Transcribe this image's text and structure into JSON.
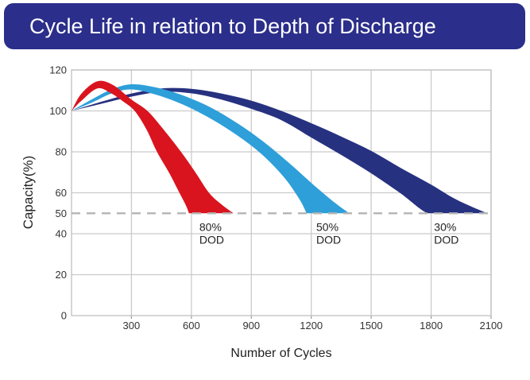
{
  "banner": {
    "title": "Cycle Life in relation to Depth of Discharge",
    "bg_color": "#2b2e8a",
    "text_color": "#ffffff"
  },
  "chart_data": {
    "type": "area",
    "subtype": "band-ribbons",
    "title": "Cycle Life in relation to Depth of Discharge",
    "xlabel": "Number of Cycles",
    "ylabel": "Capacity(%)",
    "xlim": [
      0,
      2100
    ],
    "ylim": [
      0,
      120
    ],
    "xticks": [
      300,
      600,
      900,
      1200,
      1500,
      1800,
      2100
    ],
    "yticks": [
      0,
      20,
      40,
      50,
      60,
      80,
      100,
      120
    ],
    "grid": true,
    "grid_color": "#cbcbcb",
    "axis_text_color": "#333333",
    "reference_line": {
      "y": 50,
      "style": "dashed",
      "color": "#b4b4b4"
    },
    "legend_position": "inline-labels",
    "series": [
      {
        "name": "80% DOD",
        "color": "#d9141e",
        "label": {
          "lines": [
            "80%",
            "DOD"
          ],
          "x": 640,
          "y": 46
        },
        "cycles_to_50pct": [
          590,
          800
        ],
        "upper": [
          [
            0,
            100
          ],
          [
            50,
            108.5
          ],
          [
            130,
            114.5
          ],
          [
            210,
            112.5
          ],
          [
            300,
            105.5
          ],
          [
            380,
            100
          ],
          [
            460,
            91
          ],
          [
            548,
            80
          ],
          [
            620,
            70
          ],
          [
            688,
            60
          ],
          [
            755,
            54
          ],
          [
            810,
            50
          ]
        ],
        "lower": [
          [
            0,
            100
          ],
          [
            50,
            105
          ],
          [
            130,
            111
          ],
          [
            200,
            108.5
          ],
          [
            260,
            104.5
          ],
          [
            316,
            100
          ],
          [
            375,
            91
          ],
          [
            428,
            80
          ],
          [
            490,
            69.5
          ],
          [
            540,
            60
          ],
          [
            572,
            54
          ],
          [
            588,
            50
          ]
        ]
      },
      {
        "name": "50% DOD",
        "color": "#2e9fd9",
        "label": {
          "lines": [
            "50%",
            "DOD"
          ],
          "x": 1225,
          "y": 46
        },
        "cycles_to_50pct": [
          1180,
          1390
        ],
        "upper": [
          [
            0,
            100
          ],
          [
            100,
            105.5
          ],
          [
            200,
            110.5
          ],
          [
            300,
            113
          ],
          [
            420,
            111.5
          ],
          [
            560,
            107.5
          ],
          [
            700,
            101.5
          ],
          [
            830,
            94
          ],
          [
            960,
            85
          ],
          [
            1090,
            74.5
          ],
          [
            1210,
            64
          ],
          [
            1320,
            55
          ],
          [
            1390,
            50
          ]
        ],
        "lower": [
          [
            0,
            100
          ],
          [
            100,
            104
          ],
          [
            200,
            108.5
          ],
          [
            300,
            110.5
          ],
          [
            420,
            108
          ],
          [
            560,
            103
          ],
          [
            700,
            96
          ],
          [
            830,
            88
          ],
          [
            950,
            79
          ],
          [
            1060,
            68
          ],
          [
            1140,
            57
          ],
          [
            1176,
            50
          ]
        ]
      },
      {
        "name": "30% DOD",
        "color": "#263180",
        "label": {
          "lines": [
            "30%",
            "DOD"
          ],
          "x": 1815,
          "y": 46
        },
        "cycles_to_50pct": [
          1780,
          2080
        ],
        "upper": [
          [
            0,
            100
          ],
          [
            150,
            104.5
          ],
          [
            300,
            108.5
          ],
          [
            450,
            111
          ],
          [
            600,
            110.8
          ],
          [
            750,
            108.5
          ],
          [
            900,
            105
          ],
          [
            1050,
            100
          ],
          [
            1200,
            94
          ],
          [
            1350,
            87.5
          ],
          [
            1500,
            80.5
          ],
          [
            1650,
            72
          ],
          [
            1800,
            64
          ],
          [
            1930,
            56.5
          ],
          [
            2080,
            50
          ]
        ],
        "lower": [
          [
            0,
            100
          ],
          [
            150,
            103.5
          ],
          [
            300,
            107
          ],
          [
            450,
            109.3
          ],
          [
            600,
            108.6
          ],
          [
            750,
            105.5
          ],
          [
            900,
            101
          ],
          [
            1050,
            95.5
          ],
          [
            1200,
            87
          ],
          [
            1350,
            78.5
          ],
          [
            1500,
            69.5
          ],
          [
            1650,
            59.5
          ],
          [
            1740,
            52.5
          ],
          [
            1780,
            50
          ]
        ]
      }
    ]
  }
}
